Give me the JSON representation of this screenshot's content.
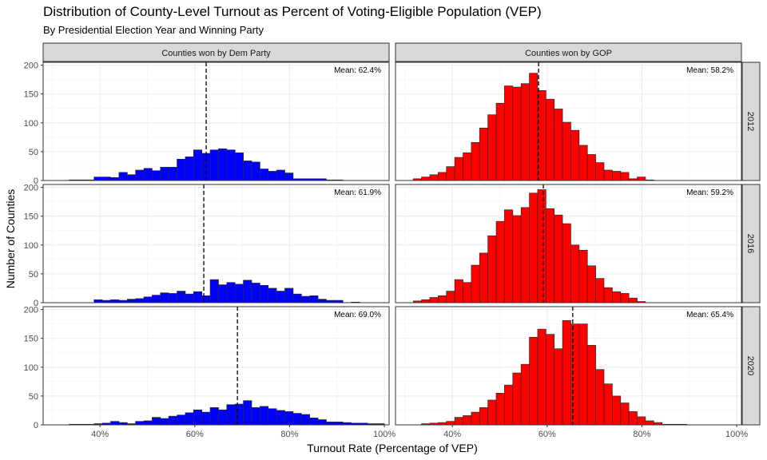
{
  "chart_data": {
    "type": "bar",
    "title": "Distribution of County-Level Turnout as Percent of Voting-Eligible Population (VEP)",
    "subtitle": "By Presidential Election Year and Winning Party",
    "xlabel": "Turnout Rate (Percentage of VEP)",
    "ylabel": "Number of Counties",
    "xlim": [
      0.28,
      1.01
    ],
    "ylim": [
      0,
      205
    ],
    "x_ticks": [
      0.4,
      0.6,
      0.8,
      1.0
    ],
    "x_tick_labels": [
      "40%",
      "60%",
      "80%",
      "100%"
    ],
    "y_ticks": [
      0,
      50,
      100,
      150,
      200
    ],
    "y_tick_labels": [
      "0",
      "50",
      "100",
      "150",
      "200"
    ],
    "grid": true,
    "bin_start": 0.3,
    "bin_width": 0.0175,
    "columns": [
      {
        "label": "Counties won by Dem Party",
        "fill": "#0000ff"
      },
      {
        "label": "Counties won by GOP",
        "fill": "#ff0000"
      }
    ],
    "rows": [
      "2012",
      "2016",
      "2020"
    ],
    "panels": [
      {
        "party": "Counties won by Dem Party",
        "year": "2012",
        "mean": 0.624,
        "mean_label": "Mean: 62.4%",
        "values": [
          0,
          0,
          1,
          1,
          1,
          6,
          6,
          5,
          14,
          10,
          18,
          21,
          17,
          23,
          23,
          37,
          41,
          53,
          47,
          53,
          55,
          53,
          48,
          34,
          32,
          20,
          16,
          18,
          13,
          3,
          3,
          3,
          3,
          1,
          1,
          0,
          0,
          0,
          0,
          0,
          0,
          0
        ]
      },
      {
        "party": "Counties won by GOP",
        "year": "2012",
        "mean": 0.582,
        "mean_label": "Mean: 58.2%",
        "values": [
          0,
          3,
          6,
          10,
          14,
          24,
          40,
          48,
          66,
          91,
          114,
          134,
          164,
          162,
          168,
          186,
          156,
          141,
          124,
          101,
          87,
          61,
          45,
          31,
          18,
          16,
          14,
          3,
          6,
          1,
          0,
          0,
          0,
          0,
          0,
          0,
          0,
          0,
          0,
          0,
          0,
          0
        ]
      },
      {
        "party": "Counties won by Dem Party",
        "year": "2016",
        "mean": 0.619,
        "mean_label": "Mean: 61.9%",
        "values": [
          0,
          0,
          0,
          0,
          0,
          5,
          4,
          5,
          4,
          6,
          7,
          10,
          13,
          17,
          16,
          20,
          15,
          19,
          12,
          40,
          31,
          35,
          32,
          39,
          34,
          30,
          25,
          20,
          25,
          15,
          11,
          12,
          6,
          4,
          4,
          0,
          1,
          0,
          0,
          0,
          0,
          0
        ]
      },
      {
        "party": "Counties won by GOP",
        "year": "2016",
        "mean": 0.592,
        "mean_label": "Mean: 59.2%",
        "values": [
          0,
          3,
          5,
          9,
          12,
          20,
          40,
          35,
          65,
          86,
          116,
          141,
          161,
          151,
          165,
          190,
          196,
          163,
          152,
          137,
          100,
          91,
          64,
          42,
          26,
          19,
          16,
          8,
          2,
          0,
          0,
          0,
          0,
          0,
          0,
          0,
          0,
          0,
          0,
          0,
          0,
          0
        ]
      },
      {
        "party": "Counties won by Dem Party",
        "year": "2020",
        "mean": 0.69,
        "mean_label": "Mean: 69.0%",
        "values": [
          0,
          0,
          1,
          1,
          1,
          2,
          3,
          6,
          4,
          2,
          6,
          7,
          13,
          11,
          15,
          17,
          21,
          26,
          22,
          30,
          26,
          35,
          36,
          42,
          30,
          32,
          28,
          25,
          23,
          20,
          18,
          12,
          9,
          5,
          5,
          4,
          3,
          3,
          2,
          2,
          0,
          0
        ]
      },
      {
        "party": "Counties won by GOP",
        "year": "2020",
        "mean": 0.654,
        "mean_label": "Mean: 65.4%",
        "values": [
          0,
          0,
          2,
          3,
          4,
          6,
          13,
          16,
          22,
          30,
          43,
          55,
          69,
          90,
          105,
          152,
          166,
          157,
          132,
          181,
          175,
          175,
          138,
          96,
          71,
          50,
          38,
          23,
          14,
          7,
          4,
          1,
          1,
          1,
          0,
          0,
          0,
          0,
          0,
          0,
          0,
          0
        ]
      }
    ]
  }
}
